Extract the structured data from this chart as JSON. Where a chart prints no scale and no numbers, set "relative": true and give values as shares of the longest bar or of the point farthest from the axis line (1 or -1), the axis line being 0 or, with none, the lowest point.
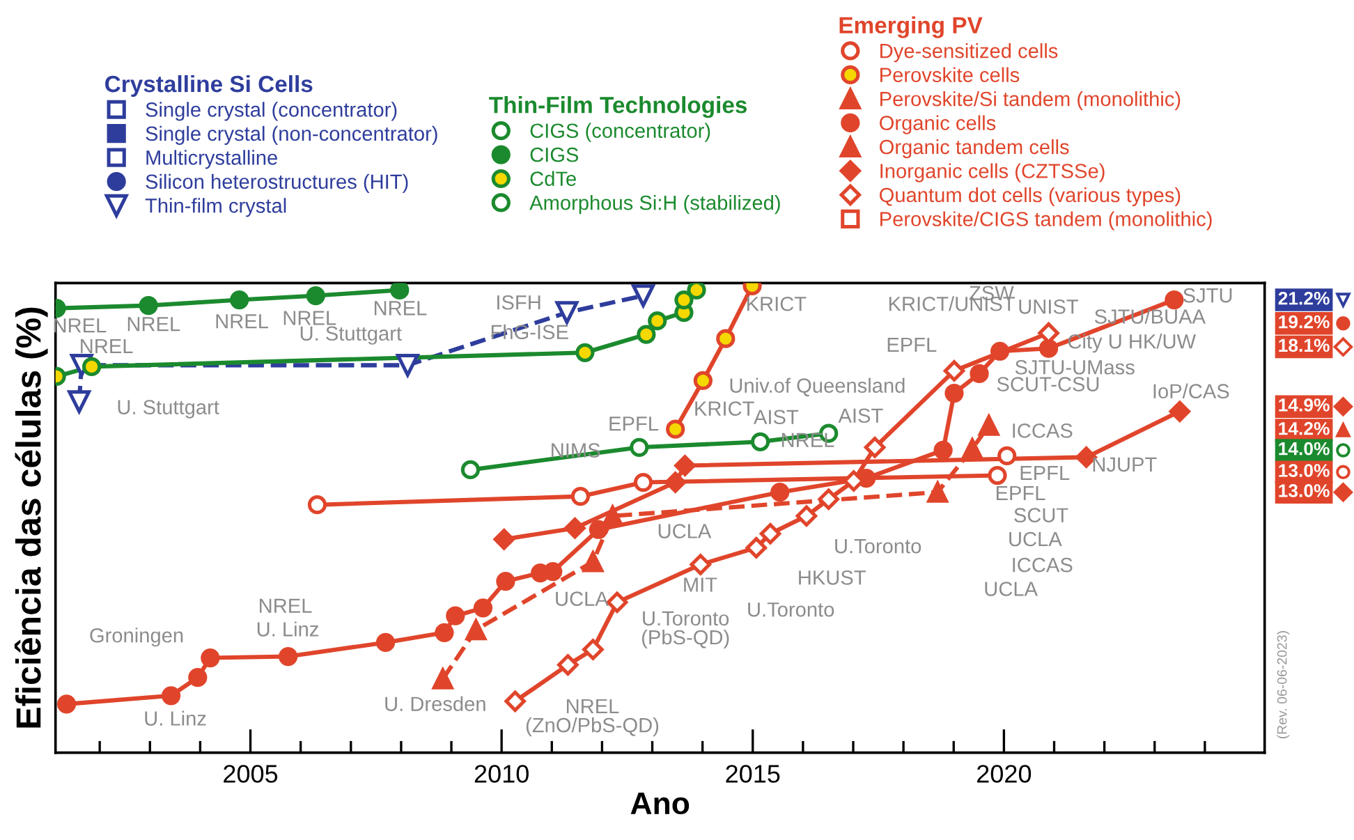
{
  "chart_data": {
    "type": "line",
    "relative": true,
    "xlabel": "Ano",
    "ylabel": "Eficiência das células (%)",
    "legend": "top",
    "xlim": [
      2001.12,
      2025.19
    ],
    "xticks": [
      {
        "value": 2002,
        "label": null
      },
      {
        "value": 2003,
        "label": null
      },
      {
        "value": 2004,
        "label": null
      },
      2005,
      {
        "value": 2006,
        "label": null
      },
      {
        "value": 2007,
        "label": null
      },
      {
        "value": 2008,
        "label": null
      },
      {
        "value": 2009,
        "label": null
      },
      2010,
      {
        "value": 2011,
        "label": null
      },
      {
        "value": 2012,
        "label": null
      },
      {
        "value": 2013,
        "label": null
      },
      {
        "value": 2014,
        "label": null
      },
      2015,
      {
        "value": 2016,
        "label": null
      },
      {
        "value": 2017,
        "label": null
      },
      {
        "value": 2018,
        "label": null
      },
      {
        "value": 2019,
        "label": null
      },
      2020,
      {
        "value": 2021,
        "label": null
      },
      {
        "value": 2022,
        "label": null
      },
      {
        "value": 2023,
        "label": null
      },
      {
        "value": 2024,
        "label": null
      }
    ],
    "series": [
      {
        "name": "Single crystal (concentrator)",
        "color": "#2e3d9c",
        "marker": "square_open"
      },
      {
        "name": "Single crystal (non-concentrator)",
        "color": "#2e3d9c",
        "marker": "square"
      },
      {
        "name": "Multicrystalline",
        "color": "#2e3d9c",
        "marker": "square_open"
      },
      {
        "name": "Silicon heterostructures (HIT)",
        "color": "#2e3d9c",
        "marker": "circle"
      },
      {
        "name": "Thin-film crystal",
        "color": "#2e3d9c",
        "marker": "triangle_down_open",
        "line_style": "dashed",
        "x": [
          2001.59,
          2001.64,
          2008.13,
          2011.3,
          2012.82
        ],
        "values": [
          0.752,
          0.83,
          0.83,
          0.943,
          0.979
        ]
      },
      {
        "name": "CIGS (concentrator)",
        "color": "#1b8a2e",
        "marker": "circle_open"
      },
      {
        "name": "CIGS",
        "color": "#1b8a2e",
        "marker": "circle",
        "line_style": "solid",
        "x": [
          2001.14,
          2002.97,
          2004.78,
          2006.3,
          2007.97
        ],
        "values": [
          0.952,
          0.958,
          0.97,
          0.979,
          0.991
        ]
      },
      {
        "name": "CdTe",
        "color": "#1b8a2e",
        "colors": [
          "#f5d800",
          "#f5d800",
          "#f5d800",
          "#f5d800",
          "#f5d800",
          "#f5d800",
          "#f5d800",
          "#f5d800"
        ],
        "marker": "circle",
        "line_style": "solid",
        "x": [
          2001.14,
          2001.84,
          2011.66,
          2012.88,
          2013.1,
          2013.63,
          2013.63,
          2013.88
        ],
        "values": [
          0.806,
          0.827,
          0.857,
          0.896,
          0.925,
          0.943,
          0.97,
          0.991
        ]
      },
      {
        "name": "Amorphous Si:H (stabilized)",
        "color": "#1b8a2e",
        "marker": "circle_open",
        "line_style": "solid",
        "x": [
          2009.38,
          2012.74,
          2015.15,
          2016.51
        ],
        "values": [
          0.606,
          0.654,
          0.666,
          0.684
        ]
      },
      {
        "name": "Dye-sensitized cells",
        "color": "#e0452b",
        "marker": "circle_open",
        "line_style": "solid",
        "x": [
          2006.33,
          2011.57,
          2012.82,
          2019.87
        ],
        "values": [
          0.531,
          0.549,
          0.579,
          0.594
        ]
      },
      {
        "name": "Perovskite cells",
        "color": "#e0452b",
        "colors": [
          "#f5d800",
          "#f5d800",
          "#f5d800",
          "#f5d800"
        ],
        "marker": "circle",
        "line_style": "solid",
        "x": [
          2013.46,
          2014.01,
          2014.46,
          2014.99
        ],
        "values": [
          0.693,
          0.797,
          0.887,
          1.0
        ]
      },
      {
        "name": "Perovskite/Si tandem (monolithic)",
        "color": "#e0452b",
        "marker": "triangle"
      },
      {
        "name": "Organic cells",
        "color": "#e0452b",
        "marker": "circle",
        "line_style": "solid",
        "x": [
          2001.34,
          2003.42,
          2003.95,
          2004.2,
          2005.75,
          2007.69,
          2008.86,
          2009.08,
          2009.63,
          2010.08,
          2010.77,
          2011.02,
          2011.93,
          2015.54,
          2017.26,
          2018.79,
          2019.01,
          2019.51,
          2019.92,
          2020.89,
          2023.39
        ],
        "values": [
          0.104,
          0.122,
          0.161,
          0.203,
          0.206,
          0.236,
          0.257,
          0.293,
          0.31,
          0.367,
          0.385,
          0.388,
          0.478,
          0.558,
          0.588,
          0.648,
          0.77,
          0.812,
          0.86,
          0.866,
          0.97
        ]
      },
      {
        "name": "Organic tandem cells",
        "color": "#e0452b",
        "marker": "triangle",
        "line_style": "dashed",
        "x": [
          2008.83,
          2009.49,
          2011.82,
          2012.21,
          2018.68,
          2019.37,
          2019.7
        ],
        "values": [
          0.158,
          0.263,
          0.409,
          0.507,
          0.558,
          0.651,
          0.701
        ]
      },
      {
        "name": "Inorganic cells (CZTSSe)",
        "color": "#e0452b",
        "marker": "diamond",
        "line_style": "solid",
        "x": [
          2010.05,
          2011.46,
          2013.46,
          2013.65,
          2021.64,
          2023.5
        ],
        "values": [
          0.457,
          0.481,
          0.579,
          0.615,
          0.633,
          0.731
        ]
      },
      {
        "name": "Quantum dot cells (various types)",
        "color": "#e0452b",
        "marker": "diamond_open",
        "line_style": "solid",
        "x": [
          2010.27,
          2011.32,
          2011.82,
          2012.3,
          2013.96,
          2015.07,
          2015.35,
          2016.07,
          2016.51,
          2017.01,
          2017.43,
          2019.01,
          2020.89
        ],
        "values": [
          0.11,
          0.188,
          0.221,
          0.322,
          0.403,
          0.439,
          0.469,
          0.507,
          0.543,
          0.582,
          0.654,
          0.818,
          0.899
        ]
      },
      {
        "name": "Perovskite/CIGS tandem (monolithic)",
        "color": "#e0452b",
        "marker": "square_open"
      },
      {
        "color": "#e0452b",
        "type": "scatter",
        "marker": "circle_open",
        "x": [
          2020.06
        ],
        "values": [
          0.636
        ]
      }
    ],
    "annotations": [
      "Crystalline Si Cells",
      "Thin-Film Technologies",
      "Emerging PV",
      "(Rev. 06-06-2023)",
      "21.2%",
      "19.2%",
      "18.1%",
      "14.9%",
      "14.2%",
      "14.0%",
      "13.0%",
      "13.0%",
      "NREL",
      "NREL",
      "NREL",
      "NREL",
      "NREL",
      "NREL",
      "U. Stuttgart",
      "U. Stuttgart",
      "ISFH",
      "FhG-ISE",
      "KRICT",
      "KRICT",
      "Univ.of Queensland",
      "AIST",
      "AIST",
      "EPFL",
      "NIMS",
      "NREL",
      "UCLA",
      "UCLA",
      "MIT",
      "U.Toronto\n(PbS-QD)",
      "U.Toronto",
      "HKUST",
      "U.Toronto",
      "NREL\n(ZnO/PbS-QD)",
      "Groningen",
      "U. Linz",
      "U. Linz",
      "NREL",
      "U. Dresden",
      "KRICT/UNIST",
      "UNIST",
      "ZSW",
      "EPFL",
      "SJTU/BUAA",
      "City U HK/UW",
      "SJTU-UMass",
      "SCUT-CSU",
      "SJTU",
      "IoP/CAS",
      "ICCAS",
      "EPFL",
      "NJUPT",
      "EPFL",
      "SCUT",
      "UCLA",
      "ICCAS",
      "UCLA"
    ]
  }
}
